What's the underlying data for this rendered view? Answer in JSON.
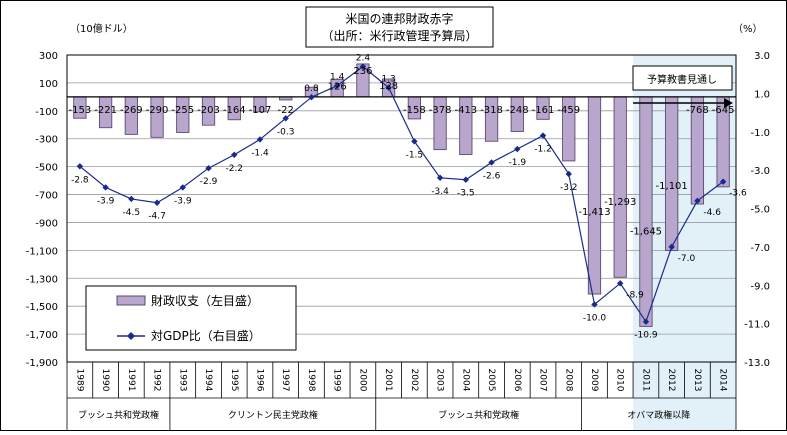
{
  "chart_data": {
    "type": "bar",
    "title_line1": "米国の連邦財政赤字",
    "title_line2": "（出所：米行政管理予算局）",
    "y_left_unit": "（10億ドル）",
    "y_right_unit": "（%）",
    "y_left_ticks": [
      "300",
      "100",
      "-100",
      "-300",
      "-500",
      "-700",
      "-900",
      "-1,100",
      "-1,300",
      "-1,500",
      "-1,700",
      "-1,900"
    ],
    "y_right_ticks": [
      "3.0",
      "1.0",
      "-1.0",
      "-3.0",
      "-5.0",
      "-7.0",
      "-9.0",
      "-11.0",
      "-13.0"
    ],
    "ylim_left": [
      -1900,
      300
    ],
    "ylim_right": [
      -13.0,
      3.0
    ],
    "categories": [
      "1989",
      "1990",
      "1991",
      "1992",
      "1993",
      "1994",
      "1995",
      "1996",
      "1997",
      "1998",
      "1999",
      "2000",
      "2001",
      "2002",
      "2003",
      "2004",
      "2005",
      "2006",
      "2007",
      "2008",
      "2009",
      "2010",
      "2011",
      "2012",
      "2013",
      "2014"
    ],
    "series": [
      {
        "name": "財政収支（左目盛）",
        "kind": "bar",
        "values": [
          -153,
          -221,
          -269,
          -290,
          -255,
          -203,
          -164,
          -107,
          -22,
          69,
          126,
          236,
          128,
          -158,
          -378,
          -413,
          -318,
          -248,
          -161,
          -459,
          -1413,
          -1293,
          -1645,
          -1101,
          -768,
          -645
        ],
        "labels": [
          "-153",
          "-221",
          "-269",
          "-290",
          "-255",
          "-203",
          "-164",
          "-107",
          "-22",
          "",
          "126",
          "236",
          "128",
          "-158",
          "-378",
          "-413",
          "-318",
          "-248",
          "-161",
          "-459",
          "-1,413",
          "-1,293",
          "-1,645",
          "-1,101",
          "-768",
          "-645"
        ]
      },
      {
        "name": "対GDP比（右目盛）",
        "kind": "line",
        "values": [
          -2.8,
          -3.9,
          -4.5,
          -4.7,
          -3.9,
          -2.9,
          -2.2,
          -1.4,
          -0.3,
          0.8,
          1.4,
          2.4,
          1.3,
          -1.5,
          -3.4,
          -3.5,
          -2.6,
          -1.9,
          -1.2,
          -3.2,
          -10.0,
          -8.9,
          -10.9,
          -7.0,
          -4.6,
          -3.6
        ],
        "labels": [
          "-2.8",
          "-3.9",
          "-4.5",
          "-4.7",
          "-3.9",
          "-2.9",
          "-2.2",
          "-1.4",
          "-0.3",
          "0.8",
          "1.4",
          "2.4",
          "1.3",
          "-1.5",
          "-3.4",
          "-3.5",
          "-2.6",
          "-1.9",
          "-1.2",
          "-3.2",
          "-10.0",
          "-8.9",
          "-10.9",
          "-7.0",
          "-4.6",
          "-3.6"
        ]
      }
    ],
    "forecast_label": "予算教書見通し",
    "forecast_from_index": 22,
    "eras": [
      {
        "label": "ブッシュ共和党政権",
        "from": 0,
        "to": 3
      },
      {
        "label": "クリントン民主党政権",
        "from": 4,
        "to": 11
      },
      {
        "label": "ブッシュ共和党政権",
        "from": 12,
        "to": 19
      },
      {
        "label": "オバマ政権以降",
        "from": 20,
        "to": 25
      }
    ],
    "legend_position": "bottom-left",
    "colors": {
      "bar_fill": "#b8a6cc",
      "bar_stroke": "#5a4a73",
      "line": "#1a2a8c",
      "forecast_bg": "#e2f1f8"
    }
  }
}
